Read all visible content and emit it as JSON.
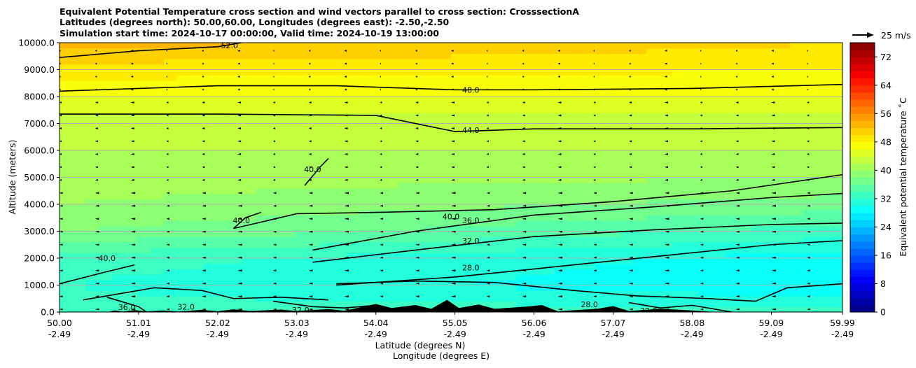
{
  "chart_data": {
    "type": "heatmap",
    "subtype": "filled-contour cross section with contour lines and wind vectors",
    "title": [
      "Equivalent Potential Temperature cross section and wind vectors parallel to cross section: CrosssectionA",
      "Latitudes (degrees north): 50.00,60.00, Longitudes (degrees east): -2.50,-2.50",
      "Simulation start time: 2024-10-17 00:00:00, Valid time: 2024-10-19 13:00:00"
    ],
    "xlabel": [
      "Latitude (degrees N)",
      "Longitude (degrees E)"
    ],
    "ylabel": "Altitude (meters)",
    "x_ticks": [
      {
        "lat": "50.00",
        "lon": "-2.49",
        "x": 0
      },
      {
        "lat": "51.01",
        "lon": "-2.49",
        "x": 1
      },
      {
        "lat": "52.02",
        "lon": "-2.49",
        "x": 2
      },
      {
        "lat": "53.03",
        "lon": "-2.49",
        "x": 3
      },
      {
        "lat": "54.04",
        "lon": "-2.49",
        "x": 4
      },
      {
        "lat": "55.05",
        "lon": "-2.49",
        "x": 5
      },
      {
        "lat": "56.06",
        "lon": "-2.49",
        "x": 6
      },
      {
        "lat": "57.07",
        "lon": "-2.49",
        "x": 7
      },
      {
        "lat": "58.08",
        "lon": "-2.49",
        "x": 8
      },
      {
        "lat": "59.09",
        "lon": "-2.49",
        "x": 9
      },
      {
        "lat": "59.99",
        "lon": "-2.49",
        "x": 9.9
      }
    ],
    "xlim": [
      0,
      9.9
    ],
    "y_ticks": [
      "0.0",
      "1000.0",
      "2000.0",
      "3000.0",
      "4000.0",
      "5000.0",
      "6000.0",
      "7000.0",
      "8000.0",
      "9000.0",
      "10000.0"
    ],
    "ylim": [
      0,
      10000
    ],
    "grid": "horizontal",
    "colorbar": {
      "label": "Equivalent potential temperature ˚C",
      "range": [
        0,
        76
      ],
      "tick_labels": [
        "0",
        "8",
        "16",
        "24",
        "32",
        "40",
        "48",
        "56",
        "64",
        "72"
      ]
    },
    "wind_key": {
      "label": "25 m/s"
    },
    "theta_e_profile": [
      {
        "alt": 0,
        "south": 33,
        "north": 33
      },
      {
        "alt": 1000,
        "south": 32,
        "north": 28
      },
      {
        "alt": 2000,
        "south": 33,
        "north": 29
      },
      {
        "alt": 3000,
        "south": 38,
        "north": 33
      },
      {
        "alt": 4000,
        "south": 40,
        "north": 37
      },
      {
        "alt": 5000,
        "south": 41,
        "north": 40
      },
      {
        "alt": 6000,
        "south": 42,
        "north": 42
      },
      {
        "alt": 7000,
        "south": 43,
        "north": 43
      },
      {
        "alt": 8000,
        "south": 46,
        "north": 46
      },
      {
        "alt": 9000,
        "south": 49,
        "north": 48
      },
      {
        "alt": 10000,
        "south": 53,
        "north": 50
      }
    ],
    "contour_lines": [
      {
        "label": "28.0",
        "label_at": [
          5.2,
          1650
        ],
        "points": [
          [
            3.5,
            1000
          ],
          [
            5,
            1300
          ],
          [
            6,
            1600
          ],
          [
            7,
            1900
          ],
          [
            8,
            2200
          ],
          [
            9,
            2500
          ],
          [
            9.9,
            2650
          ]
        ]
      },
      {
        "label": "32.0",
        "label_at": [
          5.2,
          2650
        ],
        "points": [
          [
            3.2,
            1850
          ],
          [
            4.5,
            2300
          ],
          [
            6,
            2800
          ],
          [
            7.5,
            3050
          ],
          [
            9,
            3250
          ],
          [
            9.9,
            3300
          ]
        ]
      },
      {
        "label": "36.0",
        "label_at": [
          5.2,
          3400
        ],
        "points": [
          [
            3.2,
            2300
          ],
          [
            4.5,
            3000
          ],
          [
            6,
            3600
          ],
          [
            7.5,
            3900
          ],
          [
            9,
            4250
          ],
          [
            9.9,
            4400
          ]
        ]
      },
      {
        "label": "40.0",
        "label_at": [
          4.95,
          3550
        ],
        "points": [
          [
            2.2,
            3100
          ],
          [
            3,
            3650
          ],
          [
            4,
            3700
          ],
          [
            5.5,
            3800
          ],
          [
            7,
            4100
          ],
          [
            8.5,
            4500
          ],
          [
            9.9,
            5100
          ]
        ]
      },
      {
        "label": "44.0",
        "label_at": [
          5.2,
          6750
        ],
        "points": [
          [
            0,
            7350
          ],
          [
            2,
            7350
          ],
          [
            4,
            7300
          ],
          [
            5,
            6700
          ],
          [
            6,
            6800
          ],
          [
            8,
            6800
          ],
          [
            9.9,
            6850
          ]
        ]
      },
      {
        "label": "48.0",
        "label_at": [
          5.2,
          8250
        ],
        "points": [
          [
            0,
            8200
          ],
          [
            2,
            8400
          ],
          [
            3.5,
            8400
          ],
          [
            5,
            8250
          ],
          [
            6,
            8250
          ],
          [
            8,
            8300
          ],
          [
            9.9,
            8450
          ]
        ]
      },
      {
        "label": "52.0",
        "label_at": [
          2.15,
          9900
        ],
        "points": [
          [
            0,
            9450
          ],
          [
            1,
            9700
          ],
          [
            2,
            9850
          ],
          [
            2.3,
            10000
          ]
        ]
      },
      {
        "label": "40.0",
        "label_at": [
          0.6,
          2000
        ],
        "points": [
          [
            0,
            1050
          ],
          [
            0.6,
            1500
          ],
          [
            0.95,
            1750
          ]
        ]
      },
      {
        "label": "40.0",
        "label_at": [
          3.2,
          5300
        ],
        "points": [
          [
            3.1,
            4700
          ],
          [
            3.3,
            5400
          ],
          [
            3.4,
            5700
          ]
        ]
      },
      {
        "label": "40.0",
        "label_at": [
          2.3,
          3400
        ],
        "points": [
          [
            2.2,
            3100
          ],
          [
            2.35,
            3500
          ],
          [
            2.55,
            3700
          ]
        ]
      },
      {
        "label": "32.0",
        "label_at": [
          1.6,
          200
        ],
        "points": [
          [
            0.3,
            450
          ],
          [
            1.2,
            900
          ],
          [
            1.8,
            800
          ],
          [
            2.2,
            500
          ],
          [
            2.8,
            550
          ],
          [
            3.4,
            450
          ]
        ]
      },
      {
        "label": "36.0",
        "label_at": [
          0.85,
          180
        ],
        "points": [
          [
            0.6,
            550
          ],
          [
            1,
            200
          ],
          [
            1.1,
            0
          ]
        ]
      },
      {
        "label": "32.0",
        "label_at": [
          3.05,
          80
        ],
        "points": [
          [
            2.7,
            400
          ],
          [
            3.2,
            200
          ],
          [
            3.6,
            150
          ],
          [
            4.0,
            250
          ],
          [
            4.3,
            0
          ]
        ]
      },
      {
        "label": "28.0",
        "label_at": [
          6.7,
          280
        ],
        "points": [
          [
            3.5,
            1050
          ],
          [
            4.5,
            1150
          ],
          [
            5.5,
            1100
          ],
          [
            6.5,
            800
          ],
          [
            7.3,
            600
          ],
          [
            8.2,
            500
          ],
          [
            8.8,
            400
          ],
          [
            9.2,
            900
          ],
          [
            9.9,
            1050
          ]
        ]
      },
      {
        "label": "32.0",
        "label_at": [
          7.45,
          50
        ],
        "points": [
          [
            7.2,
            350
          ],
          [
            7.6,
            150
          ],
          [
            8.0,
            250
          ],
          [
            8.5,
            0
          ]
        ]
      }
    ],
    "terrain_label_fragments": [
      "32",
      "3",
      "3",
      "3",
      "3",
      "3"
    ]
  }
}
